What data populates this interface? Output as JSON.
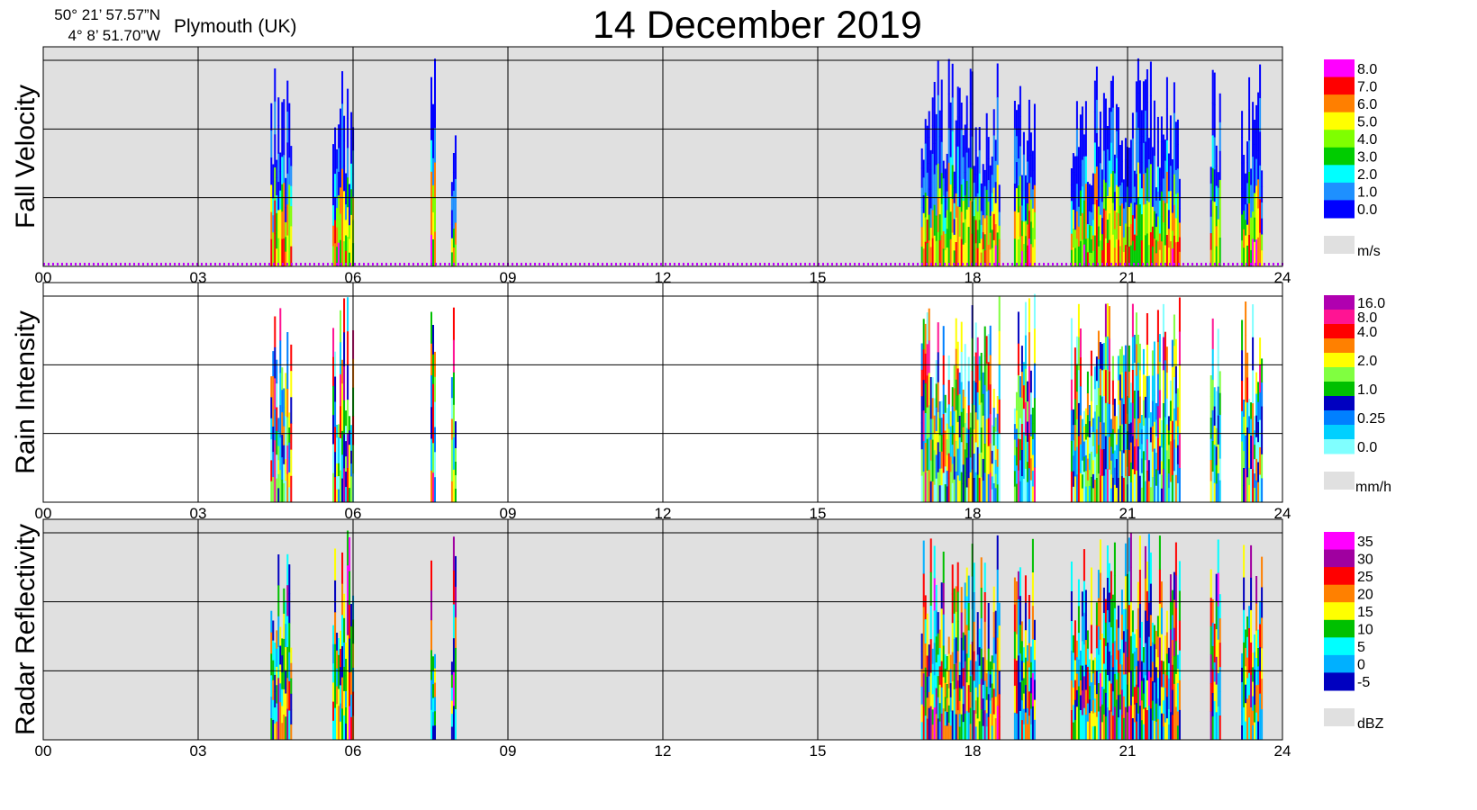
{
  "header": {
    "title": "14 December  2019",
    "coord_lat": "50° 21’ 57.57”N",
    "coord_lon": "4°  8’ 51.70”W",
    "location": "Plymouth (UK)"
  },
  "x_ticks": [
    "00",
    "03",
    "06",
    "09",
    "12",
    "15",
    "18",
    "21",
    "24"
  ],
  "panels": [
    {
      "id": "fall",
      "ylabel": "Fall Velocity",
      "background": "#e0e0e0",
      "unit": "m/s",
      "scale": [
        {
          "label": "8.0",
          "color": "#ff00ff"
        },
        {
          "label": "7.0",
          "color": "#ff0000"
        },
        {
          "label": "6.0",
          "color": "#ff7f00"
        },
        {
          "label": "5.0",
          "color": "#ffff00"
        },
        {
          "label": "4.0",
          "color": "#7fff00"
        },
        {
          "label": "3.0",
          "color": "#00cc00"
        },
        {
          "label": "2.0",
          "color": "#00ffff"
        },
        {
          "label": "1.0",
          "color": "#1e90ff"
        },
        {
          "label": "0.0",
          "color": "#0000ff"
        }
      ]
    },
    {
      "id": "rain",
      "ylabel": "Rain Intensity",
      "background": "#ffffff",
      "unit": "mm/h",
      "scale": [
        {
          "label": "16.0",
          "color": "#b000b0"
        },
        {
          "label": "8.0",
          "color": "#ff1493"
        },
        {
          "label": "4.0",
          "color": "#ff0000"
        },
        {
          "label": "",
          "color": "#ff8000"
        },
        {
          "label": "2.0",
          "color": "#ffff00"
        },
        {
          "label": "",
          "color": "#80ff40"
        },
        {
          "label": "1.0",
          "color": "#00c000"
        },
        {
          "label": "",
          "color": "#0000c0"
        },
        {
          "label": "0.25",
          "color": "#0080ff"
        },
        {
          "label": "",
          "color": "#00d0ff"
        },
        {
          "label": "0.0",
          "color": "#80ffff"
        }
      ]
    },
    {
      "id": "refl",
      "ylabel": "Radar Reflectivity",
      "background": "#e0e0e0",
      "unit": "dBZ",
      "scale": [
        {
          "label": "35",
          "color": "#ff00ff"
        },
        {
          "label": "30",
          "color": "#a000a0"
        },
        {
          "label": "25",
          "color": "#ff0000"
        },
        {
          "label": "20",
          "color": "#ff8000"
        },
        {
          "label": "15",
          "color": "#ffff00"
        },
        {
          "label": "10",
          "color": "#00c000"
        },
        {
          "label": "5",
          "color": "#00ffff"
        },
        {
          "label": "0",
          "color": "#00b0ff"
        },
        {
          "label": "-5",
          "color": "#0000c0"
        }
      ]
    }
  ],
  "chart_data": {
    "type": "heatmap",
    "x_unit": "hour",
    "xlim": [
      0,
      24
    ],
    "panels": [
      "Fall Velocity",
      "Rain Intensity",
      "Radar Reflectivity"
    ],
    "precipitation_episodes_hours": [
      [
        4.4,
        4.8
      ],
      [
        5.6,
        6.0
      ],
      [
        7.5,
        7.6
      ],
      [
        7.9,
        8.0
      ],
      [
        17.0,
        18.5
      ],
      [
        18.8,
        19.2
      ],
      [
        19.9,
        22.0
      ],
      [
        22.6,
        22.8
      ],
      [
        23.2,
        23.6
      ]
    ]
  }
}
